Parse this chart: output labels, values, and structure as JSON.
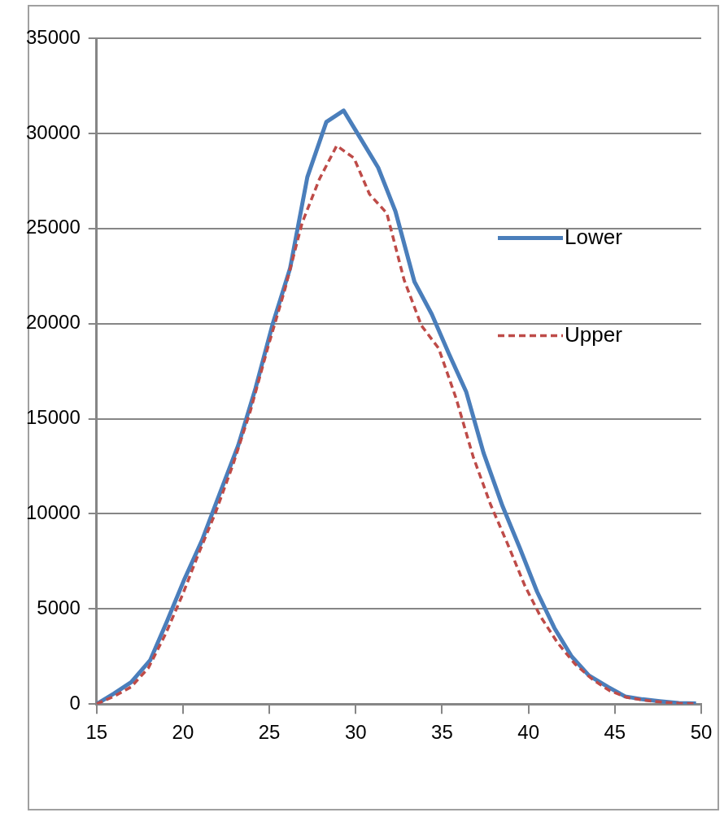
{
  "chart_data": {
    "type": "line",
    "xlim": [
      15,
      50
    ],
    "xticks": [
      15,
      20,
      25,
      30,
      35,
      40,
      45,
      50
    ],
    "ylim": [
      0,
      35000
    ],
    "yticks": [
      0,
      5000,
      10000,
      15000,
      20000,
      25000,
      30000,
      35000
    ],
    "grid": "y",
    "legend": "right",
    "marker": "none",
    "series": [
      {
        "name": "Lower",
        "color": "#4a7ebb",
        "line_style": "solid",
        "x": [
          15.0,
          16.0,
          17.0,
          18.1,
          19.1,
          20.1,
          21.1,
          22.1,
          23.2,
          24.2,
          25.2,
          26.2,
          27.2,
          28.3,
          29.3,
          30.3,
          31.3,
          32.3,
          33.4,
          34.4,
          35.4,
          36.4,
          37.4,
          38.5,
          39.5,
          40.5,
          41.5,
          42.5,
          43.5,
          44.6,
          45.6,
          46.6,
          47.6,
          48.7,
          49.7
        ],
        "values": [
          0,
          550,
          1150,
          2300,
          4400,
          6600,
          8600,
          11000,
          13600,
          16600,
          20000,
          22900,
          27700,
          30600,
          31200,
          29700,
          28200,
          25900,
          22200,
          20500,
          18400,
          16400,
          13200,
          10400,
          8200,
          5900,
          4000,
          2500,
          1500,
          900,
          400,
          250,
          150,
          50,
          30
        ]
      },
      {
        "name": "Upper",
        "color": "#be4b48",
        "line_style": "dashed",
        "x": [
          15.0,
          16.0,
          17.0,
          18.0,
          19.0,
          20.0,
          20.9,
          21.9,
          22.9,
          23.9,
          24.9,
          25.9,
          26.9,
          27.9,
          28.9,
          29.9,
          30.8,
          31.8,
          32.8,
          33.8,
          34.8,
          35.8,
          36.8,
          37.8,
          38.8,
          39.8,
          40.7,
          41.7,
          42.7,
          43.7,
          44.7,
          45.7,
          46.7,
          47.7,
          48.7,
          49.7
        ],
        "values": [
          0,
          400,
          900,
          1900,
          3700,
          5800,
          7900,
          10100,
          12600,
          15400,
          18700,
          21800,
          25300,
          27600,
          29350,
          28700,
          26800,
          25800,
          22300,
          19900,
          18700,
          16100,
          13000,
          10500,
          8400,
          6200,
          4600,
          3200,
          2100,
          1300,
          700,
          350,
          200,
          100,
          40,
          20
        ]
      }
    ]
  }
}
